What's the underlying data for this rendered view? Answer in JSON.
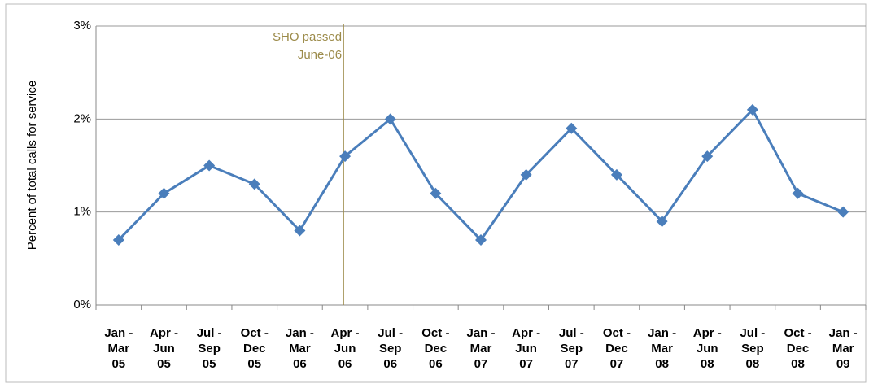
{
  "chart_data": {
    "type": "line",
    "y_label": "Percent of total calls for service",
    "annotation": {
      "lines": [
        "SHO passed",
        "June-06"
      ],
      "color": "#9c8b4a"
    },
    "categories": [
      [
        "Jan -",
        "Mar",
        "05"
      ],
      [
        "Apr -",
        "Jun",
        "05"
      ],
      [
        "Jul -",
        "Sep",
        "05"
      ],
      [
        "Oct -",
        "Dec",
        "05"
      ],
      [
        "Jan -",
        "Mar",
        "06"
      ],
      [
        "Apr -",
        "Jun",
        "06"
      ],
      [
        "Jul -",
        "Sep",
        "06"
      ],
      [
        "Oct -",
        "Dec",
        "06"
      ],
      [
        "Jan -",
        "Mar",
        "07"
      ],
      [
        "Apr -",
        "Jun",
        "07"
      ],
      [
        "Jul -",
        "Sep",
        "07"
      ],
      [
        "Oct -",
        "Dec",
        "07"
      ],
      [
        "Jan -",
        "Mar",
        "08"
      ],
      [
        "Apr -",
        "Jun",
        "08"
      ],
      [
        "Jul -",
        "Sep",
        "08"
      ],
      [
        "Oct -",
        "Dec",
        "08"
      ],
      [
        "Jan -",
        "Mar",
        "09"
      ]
    ],
    "values": [
      0.7,
      1.2,
      1.5,
      1.3,
      0.8,
      1.6,
      2.0,
      1.2,
      0.7,
      1.4,
      1.9,
      1.4,
      0.9,
      1.6,
      2.1,
      1.2,
      1.0
    ],
    "color": "#4a7ebb",
    "ylim": [
      0,
      3
    ],
    "yticks": [
      {
        "value": 0,
        "label": "0%"
      },
      {
        "value": 1,
        "label": "1%"
      },
      {
        "value": 2,
        "label": "2%"
      },
      {
        "value": 3,
        "label": "3%"
      }
    ],
    "grid": true
  }
}
